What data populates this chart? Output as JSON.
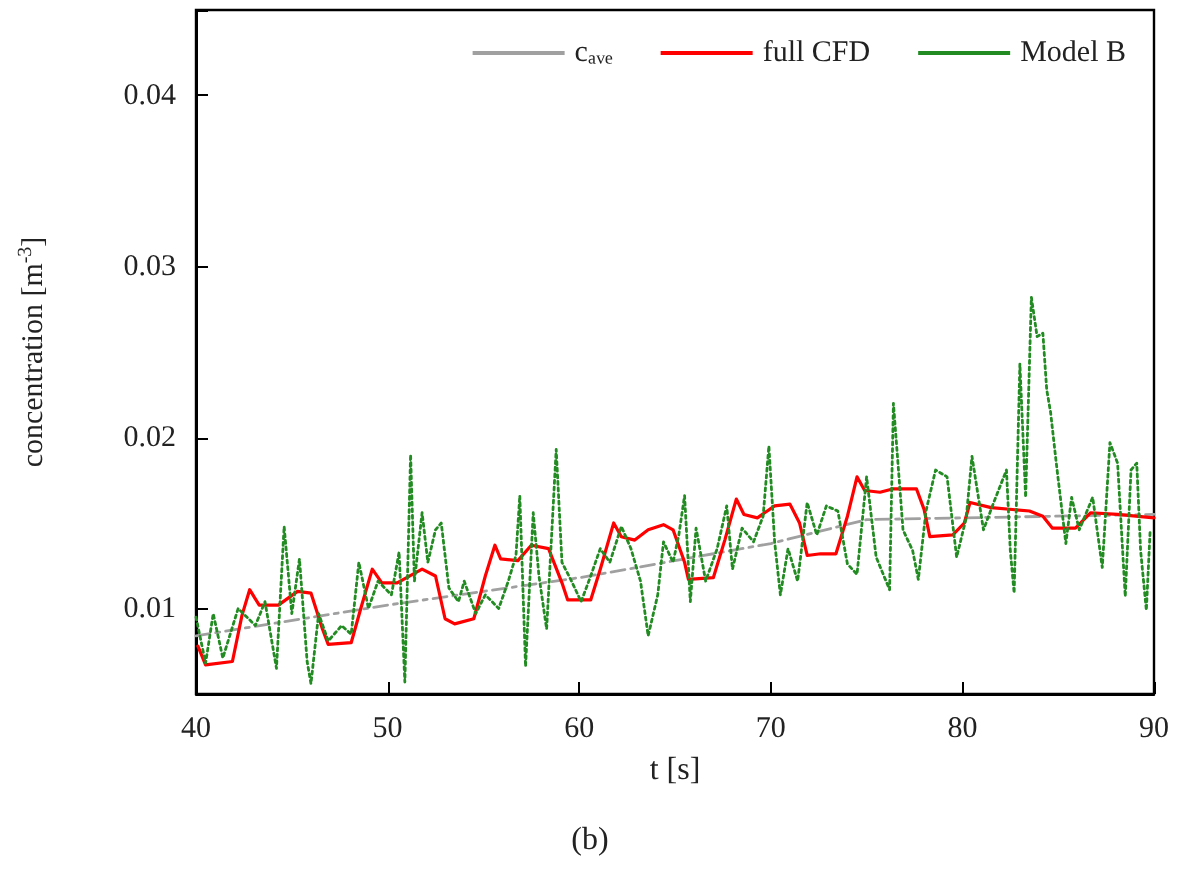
{
  "chart_data": {
    "type": "line",
    "xlabel": "t [s]",
    "ylabel": "concentration [m$^{-3}$]",
    "xlim": [
      40,
      90
    ],
    "xticks": [
      40,
      50,
      60,
      70,
      80,
      90
    ],
    "ylim": [
      0.005,
      0.045
    ],
    "yticks": [
      {
        "value": 0.005,
        "label": null
      },
      0.01,
      0.02,
      0.03,
      0.04,
      {
        "value": 0.045,
        "label": null
      }
    ],
    "grid": false,
    "legend": "top right",
    "marker": "none",
    "annotations": [
      "(b)"
    ],
    "series": [
      {
        "name": "cₐᵥₑ",
        "color": "#a0a0a0",
        "line_style": "dashed",
        "x": [
          40,
          50,
          60,
          70,
          75,
          90
        ],
        "values": [
          0.0084,
          0.0102,
          0.0118,
          0.0138,
          0.0152,
          0.0155
        ]
      },
      {
        "name": "full CFD",
        "color": "#ff0000",
        "line_style": "solid",
        "x": [
          40.1,
          40.5,
          41.9,
          42.4,
          42.8,
          43.3,
          44.3,
          45.3,
          46.0,
          46.6,
          46.9,
          48.1,
          48.6,
          49.2,
          49.7,
          50.5,
          51.8,
          52.5,
          53.0,
          53.5,
          54.5,
          55.1,
          55.6,
          55.9,
          56.8,
          57.5,
          58.4,
          59.1,
          59.4,
          60.6,
          61.1,
          61.8,
          62.2,
          62.9,
          63.6,
          64.4,
          64.9,
          65.5,
          65.7,
          67.0,
          67.6,
          68.2,
          68.6,
          69.3,
          70.2,
          71.0,
          71.5,
          71.9,
          72.6,
          73.4,
          74.0,
          74.5,
          74.9,
          75.7,
          76.4,
          77.6,
          78.0,
          78.3,
          79.5,
          80.1,
          80.4,
          81.5,
          83.5,
          84.2,
          84.7,
          85.9,
          86.7,
          88.1,
          90.0
        ],
        "values": [
          0.0078,
          0.0067,
          0.0069,
          0.0096,
          0.0111,
          0.0102,
          0.0102,
          0.011,
          0.0109,
          0.0088,
          0.0079,
          0.008,
          0.01,
          0.0123,
          0.0115,
          0.0115,
          0.0123,
          0.0119,
          0.0094,
          0.0091,
          0.0094,
          0.0119,
          0.0137,
          0.0129,
          0.0128,
          0.0137,
          0.0135,
          0.0115,
          0.0105,
          0.0105,
          0.0123,
          0.015,
          0.0142,
          0.014,
          0.0146,
          0.0149,
          0.0146,
          0.0127,
          0.0117,
          0.0118,
          0.014,
          0.0164,
          0.0155,
          0.0153,
          0.016,
          0.0161,
          0.015,
          0.0131,
          0.0132,
          0.0132,
          0.0154,
          0.0177,
          0.0169,
          0.0168,
          0.017,
          0.017,
          0.0158,
          0.0142,
          0.0143,
          0.015,
          0.0162,
          0.0159,
          0.0157,
          0.0154,
          0.0147,
          0.0147,
          0.0156,
          0.0155,
          0.0153
        ]
      },
      {
        "name": "Model B",
        "color": "#228b22",
        "line_style": "dotted",
        "x": [
          40.0,
          40.5,
          40.9,
          41.4,
          42.2,
          43.1,
          43.6,
          44.2,
          44.6,
          45.0,
          45.4,
          45.8,
          46.0,
          46.4,
          46.9,
          47.6,
          48.1,
          48.5,
          49.0,
          49.5,
          50.2,
          50.6,
          50.9,
          51.2,
          51.4,
          51.8,
          52.1,
          52.5,
          52.8,
          53.2,
          53.7,
          54.0,
          54.6,
          55.1,
          55.8,
          56.3,
          56.7,
          56.9,
          57.2,
          57.6,
          57.9,
          58.3,
          58.8,
          59.1,
          59.6,
          60.1,
          60.6,
          61.1,
          61.6,
          62.2,
          62.7,
          63.2,
          63.6,
          64.1,
          64.4,
          64.9,
          65.2,
          65.5,
          65.8,
          66.1,
          66.6,
          67.2,
          67.7,
          68.0,
          68.5,
          69.1,
          69.6,
          69.9,
          70.2,
          70.5,
          70.9,
          71.4,
          71.9,
          72.4,
          72.9,
          73.5,
          74.0,
          74.5,
          75.0,
          75.5,
          76.2,
          76.4,
          76.9,
          77.4,
          77.7,
          78.1,
          78.6,
          79.2,
          79.7,
          80.2,
          80.5,
          81.1,
          81.6,
          82.3,
          82.5,
          82.7,
          83.0,
          83.3,
          83.6,
          83.9,
          84.2,
          84.4,
          84.6,
          84.9,
          85.4,
          85.7,
          86.1,
          86.8,
          87.3,
          87.7,
          88.1,
          88.5,
          88.8,
          89.1,
          89.3,
          89.6,
          89.8
        ],
        "values": [
          0.0095,
          0.0068,
          0.0097,
          0.0071,
          0.01,
          0.009,
          0.0104,
          0.0065,
          0.0148,
          0.0097,
          0.0129,
          0.0069,
          0.0056,
          0.0097,
          0.0081,
          0.009,
          0.0085,
          0.0127,
          0.01,
          0.0116,
          0.0108,
          0.0133,
          0.0057,
          0.019,
          0.0116,
          0.0156,
          0.0127,
          0.0146,
          0.015,
          0.0112,
          0.0104,
          0.0116,
          0.0097,
          0.0108,
          0.01,
          0.0116,
          0.0131,
          0.0166,
          0.0066,
          0.0156,
          0.0119,
          0.0088,
          0.0193,
          0.0127,
          0.0116,
          0.0104,
          0.0119,
          0.0135,
          0.0127,
          0.0148,
          0.0135,
          0.0116,
          0.0084,
          0.0108,
          0.0139,
          0.0127,
          0.0143,
          0.0166,
          0.0104,
          0.0147,
          0.0116,
          0.0135,
          0.016,
          0.0123,
          0.0147,
          0.0139,
          0.0154,
          0.0195,
          0.0139,
          0.0108,
          0.0135,
          0.0116,
          0.0162,
          0.0143,
          0.016,
          0.0157,
          0.0126,
          0.012,
          0.0177,
          0.013,
          0.0111,
          0.022,
          0.0146,
          0.0134,
          0.0117,
          0.0157,
          0.0181,
          0.0177,
          0.013,
          0.0153,
          0.0189,
          0.0146,
          0.0161,
          0.0181,
          0.0134,
          0.0109,
          0.0243,
          0.0165,
          0.0282,
          0.0259,
          0.0261,
          0.0228,
          0.0215,
          0.0185,
          0.0138,
          0.0165,
          0.0146,
          0.0165,
          0.0124,
          0.0197,
          0.0185,
          0.0107,
          0.0181,
          0.0185,
          0.0134,
          0.0099,
          0.0146
        ]
      }
    ]
  }
}
